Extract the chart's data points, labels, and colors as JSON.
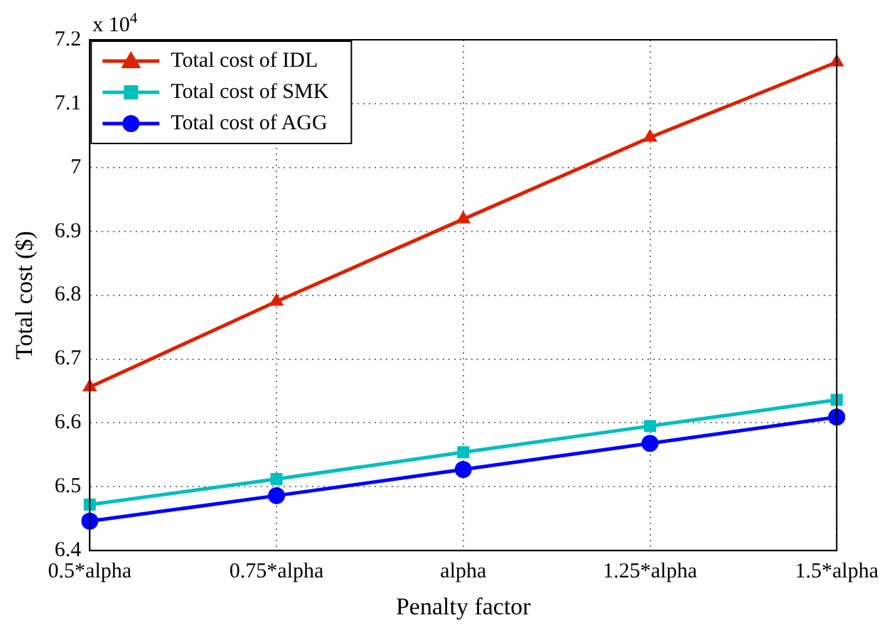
{
  "chart_data": {
    "type": "line",
    "xlabel": "Penalty factor",
    "ylabel": "Total cost ($)",
    "annotations": [
      "x 10$^{4}$"
    ],
    "categories": [
      "0.5*alpha",
      "0.75*alpha",
      "alpha",
      "1.25*alpha",
      "1.5*alpha"
    ],
    "series": [
      {
        "name": "Total cost of IDL",
        "color": "#dd2200",
        "marker": "triangle",
        "values": [
          6.656,
          6.79,
          6.919,
          7.047,
          7.165
        ]
      },
      {
        "name": "Total cost of SMK",
        "color": "#00bfbf",
        "marker": "square",
        "values": [
          6.472,
          6.512,
          6.554,
          6.595,
          6.636
        ]
      },
      {
        "name": "Total cost of AGG",
        "color": "#0000ff",
        "marker": "circle",
        "values": [
          6.446,
          6.486,
          6.527,
          6.568,
          6.609
        ]
      }
    ],
    "ylim": [
      6.4,
      7.2
    ],
    "yticks": [
      6.4,
      6.5,
      6.6,
      6.7,
      6.8,
      6.9,
      7,
      7.1,
      7.2
    ],
    "grid": true,
    "line_style": "solid",
    "legend": "top left"
  }
}
